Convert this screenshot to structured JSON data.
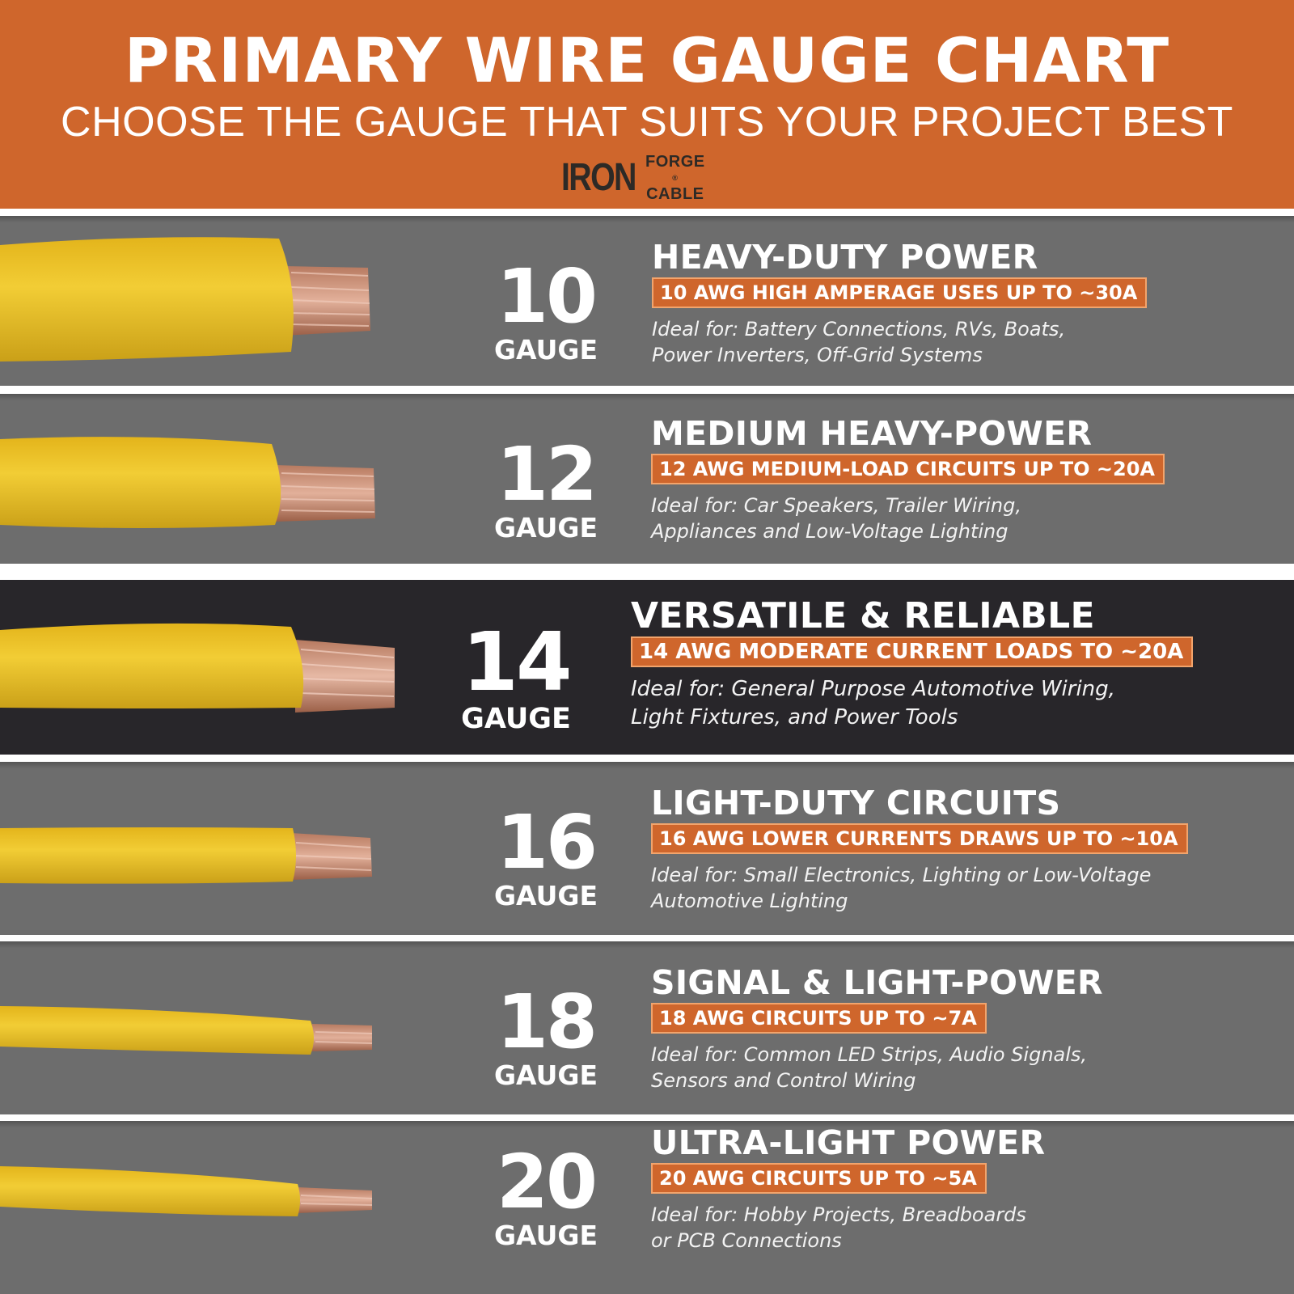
{
  "header": {
    "title": "PRIMARY WIRE GAUGE CHART",
    "subtitle": "CHOOSE THE GAUGE THAT SUITS YOUR PROJECT BEST",
    "logo": {
      "main": "IRON",
      "line1": "FORGE",
      "line2": "CABLE",
      "mark": "®"
    }
  },
  "colors": {
    "accent": "#cf662c",
    "row_bg": "#6d6d6d",
    "row_highlight_bg": "#28262a",
    "wire_insulation": "#f0c82a",
    "copper": "#c98a6e"
  },
  "rows": [
    {
      "number": "10",
      "unit": "GAUGE",
      "heading": "HEAVY-DUTY POWER",
      "badge": "10 AWG HIGH AMPERAGE USES UP TO ~30A",
      "ideal_line1": "Ideal for: Battery Connections, RVs, Boats,",
      "ideal_line2": "Power Inverters, Off-Grid Systems"
    },
    {
      "number": "12",
      "unit": "GAUGE",
      "heading": "MEDIUM HEAVY-POWER",
      "badge": "12 AWG MEDIUM-LOAD CIRCUITS UP TO ~20A",
      "ideal_line1": "Ideal for: Car Speakers, Trailer Wiring,",
      "ideal_line2": "Appliances and Low-Voltage Lighting"
    },
    {
      "number": "14",
      "unit": "GAUGE",
      "heading": "VERSATILE & RELIABLE",
      "badge": "14 AWG MODERATE CURRENT LOADS TO ~20A",
      "ideal_line1": "Ideal for: General Purpose Automotive Wiring,",
      "ideal_line2": "Light Fixtures, and Power Tools"
    },
    {
      "number": "16",
      "unit": "GAUGE",
      "heading": "LIGHT-DUTY CIRCUITS",
      "badge": "16 AWG LOWER CURRENTS DRAWS UP TO ~10A",
      "ideal_line1": "Ideal for: Small Electronics, Lighting or Low-Voltage",
      "ideal_line2": "Automotive Lighting"
    },
    {
      "number": "18",
      "unit": "GAUGE",
      "heading": "SIGNAL & LIGHT-POWER",
      "badge": "18 AWG CIRCUITS UP TO ~7A",
      "ideal_line1": "Ideal for: Common LED Strips, Audio Signals,",
      "ideal_line2": "Sensors and Control Wiring"
    },
    {
      "number": "20",
      "unit": "GAUGE",
      "heading": "ULTRA-LIGHT POWER",
      "badge": "20 AWG CIRCUITS UP TO ~5A",
      "ideal_line1": "Ideal for: Hobby Projects, Breadboards",
      "ideal_line2": "or PCB Connections"
    }
  ]
}
